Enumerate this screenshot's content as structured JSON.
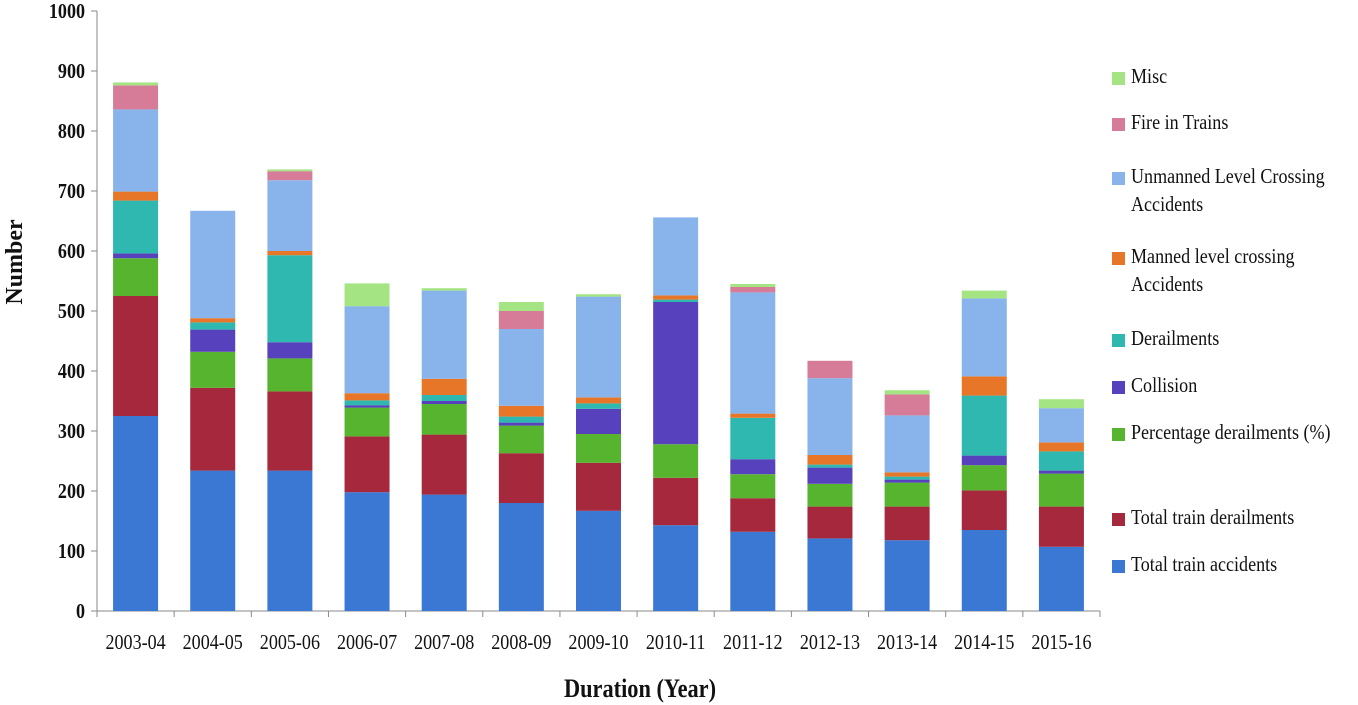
{
  "chart_data": {
    "type": "bar",
    "stacked": true,
    "title": "",
    "xlabel": "Duration (Year)",
    "ylabel": "Number",
    "ylim": [
      0,
      1000
    ],
    "yticks": [
      "0",
      "100",
      "200",
      "300",
      "400",
      "500",
      "600",
      "700",
      "800",
      "900",
      "1000"
    ],
    "grid": false,
    "legend_position": "right",
    "categories": [
      "2003-04",
      "2004-05",
      "2005-06",
      "2006-07",
      "2007-08",
      "2008-09",
      "2009-10",
      "2010-11",
      "2011-12",
      "2012-13",
      "2013-14",
      "2014-15",
      "2015-16"
    ],
    "series": [
      {
        "name": "Total train accidents",
        "color": "#3A78D4",
        "values": [
          325,
          234,
          234,
          198,
          194,
          180,
          167,
          143,
          132,
          121,
          118,
          135,
          107
        ]
      },
      {
        "name": "Total train derailments",
        "color": "#A6283D",
        "values": [
          200,
          138,
          132,
          93,
          100,
          83,
          80,
          79,
          56,
          53,
          56,
          66,
          67
        ]
      },
      {
        "name": "Percentage derailments (%)",
        "color": "#57B42E",
        "values": [
          63,
          60,
          55,
          48,
          51,
          46,
          48,
          56,
          40,
          38,
          40,
          42,
          55
        ]
      },
      {
        "name": "Collision",
        "color": "#5741BD",
        "values": [
          8,
          37,
          27,
          4,
          5,
          5,
          42,
          237,
          25,
          27,
          5,
          16,
          5
        ]
      },
      {
        "name": "Derailments",
        "color": "#2EB8B0",
        "values": [
          88,
          12,
          145,
          8,
          10,
          10,
          9,
          4,
          69,
          5,
          5,
          100,
          32
        ]
      },
      {
        "name": "Manned level crossing Accidents",
        "color": "#E87628",
        "values": [
          15,
          7,
          7,
          12,
          27,
          18,
          10,
          7,
          7,
          16,
          7,
          32,
          15
        ]
      },
      {
        "name": "Unmanned Level Crossing Accidents",
        "color": "#89B4EB",
        "values": [
          137,
          179,
          118,
          145,
          147,
          128,
          168,
          130,
          202,
          128,
          95,
          130,
          57
        ]
      },
      {
        "name": "Fire in Trains",
        "color": "#D77C98",
        "values": [
          40,
          0,
          15,
          0,
          0,
          30,
          0,
          0,
          9,
          29,
          35,
          0,
          0
        ]
      },
      {
        "name": "Misc",
        "color": "#A4E483",
        "values": [
          5,
          0,
          3,
          38,
          4,
          15,
          4,
          0,
          5,
          0,
          7,
          13,
          15
        ]
      }
    ]
  }
}
